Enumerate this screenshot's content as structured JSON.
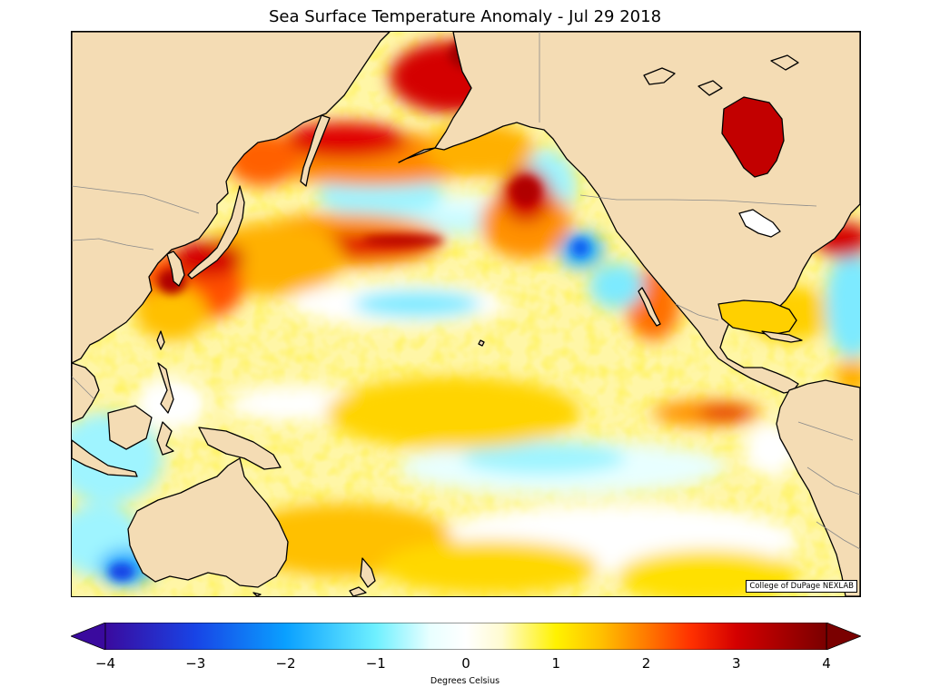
{
  "title": "Sea Surface Temperature Anomaly - Jul 29 2018",
  "credit": "College of DuPage NEXLAB",
  "colorbar": {
    "label": "Degrees Celsius",
    "min": -4,
    "max": 4,
    "ticks": [
      "−4",
      "−3",
      "−2",
      "−1",
      "0",
      "1",
      "2",
      "3",
      "4"
    ],
    "tick_values": [
      -4,
      -3,
      -2,
      -1,
      0,
      1,
      2,
      3,
      4
    ],
    "extend": "both",
    "color_stops": [
      {
        "value": -4,
        "color": "#3a0a9e"
      },
      {
        "value": -3,
        "color": "#1844e6"
      },
      {
        "value": -2,
        "color": "#0aa0ff"
      },
      {
        "value": -1,
        "color": "#6ef0ff"
      },
      {
        "value": -0.4,
        "color": "#e8ffff"
      },
      {
        "value": 0,
        "color": "#ffffff"
      },
      {
        "value": 0.4,
        "color": "#fffbd0"
      },
      {
        "value": 1,
        "color": "#fff200"
      },
      {
        "value": 1.5,
        "color": "#ffc000"
      },
      {
        "value": 2,
        "color": "#ff7a00"
      },
      {
        "value": 2.5,
        "color": "#ff3000"
      },
      {
        "value": 3,
        "color": "#d40000"
      },
      {
        "value": 4,
        "color": "#7a0000"
      }
    ]
  },
  "map": {
    "region": "Pacific Ocean",
    "land_color": "#f4dcb4",
    "coastline_color": "#000000",
    "border_color": "#8a8a8a"
  }
}
